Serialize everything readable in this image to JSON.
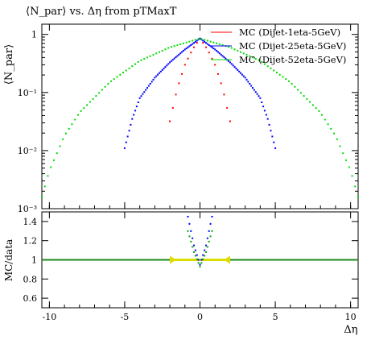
{
  "chart_data": [
    {
      "type": "scatter",
      "title": "⟨N_par⟩ vs. Δη from pTMaxT",
      "ylabel": "⟨N_par⟩",
      "yscale": "log",
      "ylim": [
        0.001,
        1.5
      ],
      "xlim": [
        -10.5,
        10.5
      ],
      "ytick_labels": [
        "10⁻³",
        "10⁻²",
        "10⁻¹",
        "1"
      ],
      "ytick_values": [
        0.001,
        0.01,
        0.1,
        1
      ],
      "legend_position": "top-right",
      "series": [
        {
          "name": "MC (Dijet-1eta-5GeV)",
          "color": "#ff0000",
          "x": [
            -2.0,
            -1.5,
            -1.0,
            -0.5,
            0.0,
            0.5,
            1.0,
            1.5,
            2.0
          ],
          "y": [
            0.032,
            0.12,
            0.3,
            0.55,
            0.85,
            0.55,
            0.3,
            0.12,
            0.032
          ]
        },
        {
          "name": "MC (Dijet-25eta-5GeV)",
          "color": "#0000ff",
          "x": [
            -5.0,
            -4.5,
            -4.0,
            -3.0,
            -2.0,
            -1.0,
            0.0,
            1.0,
            2.0,
            3.0,
            4.0,
            4.5,
            5.0
          ],
          "y": [
            0.011,
            0.035,
            0.08,
            0.18,
            0.33,
            0.55,
            0.85,
            0.55,
            0.33,
            0.18,
            0.08,
            0.035,
            0.011
          ]
        },
        {
          "name": "MC (Dijet-52eta-5GeV)",
          "color": "#00dd00",
          "x": [
            -10.5,
            -10.0,
            -9.0,
            -8.0,
            -6.0,
            -4.0,
            -2.0,
            0.0,
            2.0,
            4.0,
            6.0,
            8.0,
            9.0,
            10.0,
            10.5
          ],
          "y": [
            0.0016,
            0.0045,
            0.018,
            0.045,
            0.15,
            0.35,
            0.6,
            0.85,
            0.6,
            0.35,
            0.15,
            0.045,
            0.018,
            0.0045,
            0.0016
          ]
        }
      ]
    },
    {
      "type": "scatter",
      "xlabel": "Δη",
      "ylabel": "MC/data",
      "ylim": [
        0.5,
        1.5
      ],
      "xlim": [
        -10.5,
        10.5
      ],
      "ytick_values": [
        0.6,
        0.8,
        1.0,
        1.2,
        1.4
      ],
      "ytick_labels": [
        "0.6",
        "0.8",
        "1",
        "1.2",
        "1.4"
      ],
      "xtick_values": [
        -10,
        -5,
        0,
        5,
        10
      ],
      "xtick_labels": [
        "-10",
        "-5",
        "0",
        "5",
        "10"
      ],
      "reference_line": 1.0,
      "series": [
        {
          "color": "#00aa00",
          "x": [
            -0.8,
            -0.4,
            0.0,
            0.4,
            0.8
          ],
          "y": [
            1.3,
            1.08,
            0.93,
            1.08,
            1.3
          ]
        },
        {
          "color": "#0000ff",
          "x": [
            -0.8,
            -0.4,
            0.0,
            0.4,
            0.8
          ],
          "y": [
            1.45,
            1.15,
            0.95,
            1.15,
            1.45
          ]
        },
        {
          "color": "#dddd00",
          "x": [
            -2.0,
            -1.5,
            -1.0,
            -0.5,
            0.0,
            0.5,
            1.0,
            1.5,
            2.0
          ],
          "y": [
            1.0,
            1.0,
            1.0,
            1.0,
            1.0,
            1.0,
            1.0,
            1.0,
            1.0
          ]
        }
      ]
    }
  ]
}
